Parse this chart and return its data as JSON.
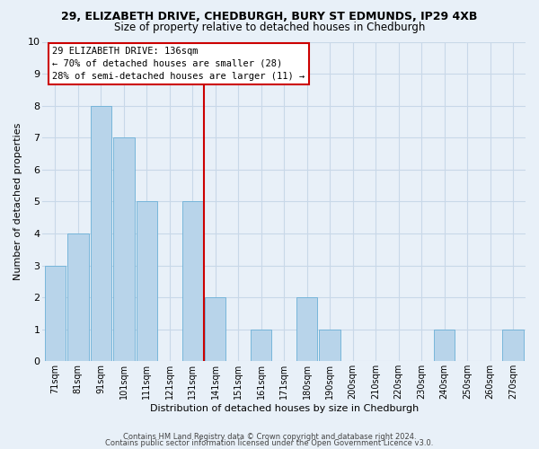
{
  "title_line1": "29, ELIZABETH DRIVE, CHEDBURGH, BURY ST EDMUNDS, IP29 4XB",
  "title_line2": "Size of property relative to detached houses in Chedburgh",
  "xlabel": "Distribution of detached houses by size in Chedburgh",
  "ylabel": "Number of detached properties",
  "bin_labels": [
    "71sqm",
    "81sqm",
    "91sqm",
    "101sqm",
    "111sqm",
    "121sqm",
    "131sqm",
    "141sqm",
    "151sqm",
    "161sqm",
    "171sqm",
    "180sqm",
    "190sqm",
    "200sqm",
    "210sqm",
    "220sqm",
    "230sqm",
    "240sqm",
    "250sqm",
    "260sqm",
    "270sqm"
  ],
  "bar_heights": [
    3,
    4,
    8,
    7,
    5,
    0,
    5,
    2,
    0,
    1,
    0,
    2,
    1,
    0,
    0,
    0,
    0,
    1,
    0,
    0,
    1
  ],
  "red_line_index": 7,
  "bar_color": "#b8d4ea",
  "bar_edge_color": "#6aafd6",
  "red_line_color": "#cc0000",
  "ylim": [
    0,
    10
  ],
  "yticks": [
    0,
    1,
    2,
    3,
    4,
    5,
    6,
    7,
    8,
    9,
    10
  ],
  "annotation_title": "29 ELIZABETH DRIVE: 136sqm",
  "annotation_line2": "← 70% of detached houses are smaller (28)",
  "annotation_line3": "28% of semi-detached houses are larger (11) →",
  "annotation_box_color": "#ffffff",
  "annotation_box_edge_color": "#cc0000",
  "footer_line1": "Contains HM Land Registry data © Crown copyright and database right 2024.",
  "footer_line2": "Contains public sector information licensed under the Open Government Licence v3.0.",
  "grid_color": "#c8d8e8",
  "background_color": "#e8f0f8",
  "title_fontsize": 9,
  "subtitle_fontsize": 8.5,
  "tick_fontsize": 7,
  "axis_label_fontsize": 8,
  "annotation_fontsize": 7.5,
  "footer_fontsize": 6
}
